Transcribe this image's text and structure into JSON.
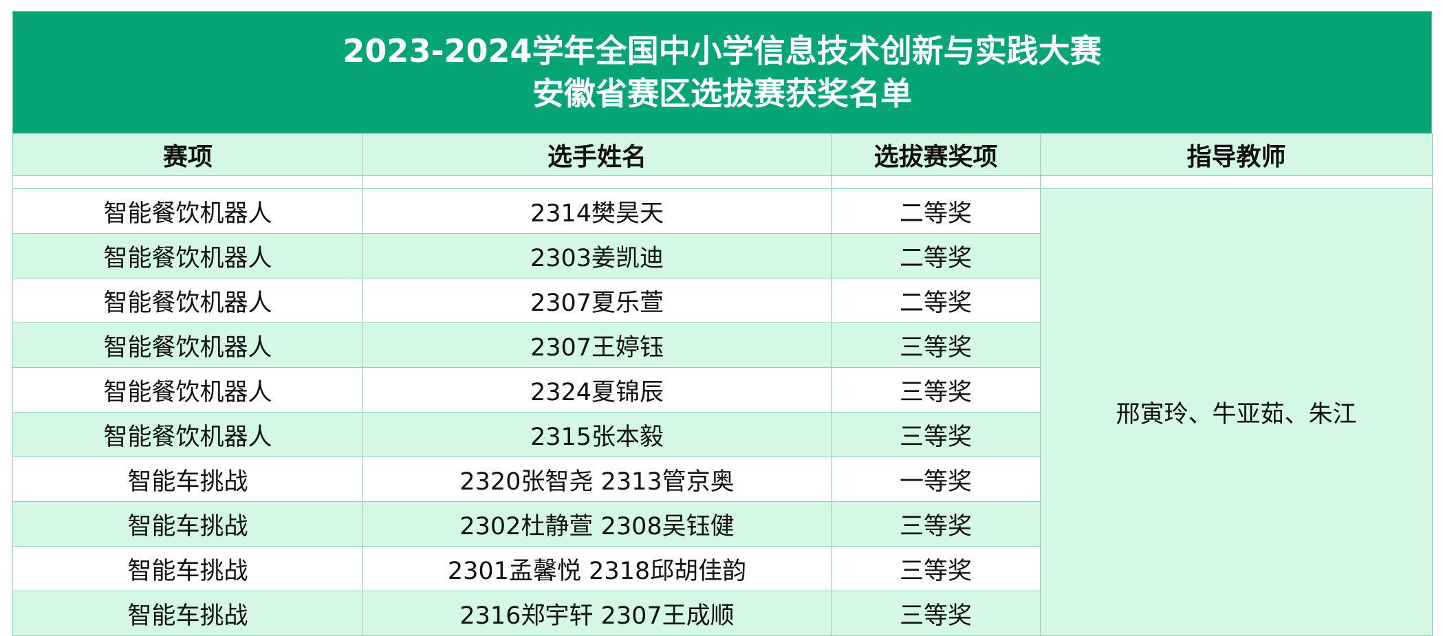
{
  "title": {
    "line1": "2023-2024学年全国中小学信息技术创新与实践大赛",
    "line2": "安徽省赛区选拔赛获奖名单"
  },
  "columns": [
    "赛项",
    "选手姓名",
    "选拔赛奖项",
    "指导教师"
  ],
  "rows": [
    {
      "event": "智能餐饮机器人",
      "name": "2314樊昊天",
      "award": "二等奖"
    },
    {
      "event": "智能餐饮机器人",
      "name": "2303姜凯迪",
      "award": "二等奖"
    },
    {
      "event": "智能餐饮机器人",
      "name": "2307夏乐萱",
      "award": "二等奖"
    },
    {
      "event": "智能餐饮机器人",
      "name": "2307王婷钰",
      "award": "三等奖"
    },
    {
      "event": "智能餐饮机器人",
      "name": "2324夏锦辰",
      "award": "三等奖"
    },
    {
      "event": "智能餐饮机器人",
      "name": "2315张本毅",
      "award": "三等奖"
    },
    {
      "event": "智能车挑战",
      "name": "2320张智尧 2313管京奥",
      "award": "一等奖"
    },
    {
      "event": "智能车挑战",
      "name": "2302杜静萱 2308吴钰健",
      "award": "三等奖"
    },
    {
      "event": "智能车挑战",
      "name": "2301孟馨悦 2318邱胡佳韵",
      "award": "三等奖"
    },
    {
      "event": "智能车挑战",
      "name": "2316郑宇轩 2307王成顺",
      "award": "三等奖"
    }
  ],
  "teachers": "邢寅玲、牛亚茹、朱江",
  "colors": {
    "title_bg": "#06a477",
    "row_alt": "#d4f8e3",
    "border": "#8fd3b2"
  }
}
